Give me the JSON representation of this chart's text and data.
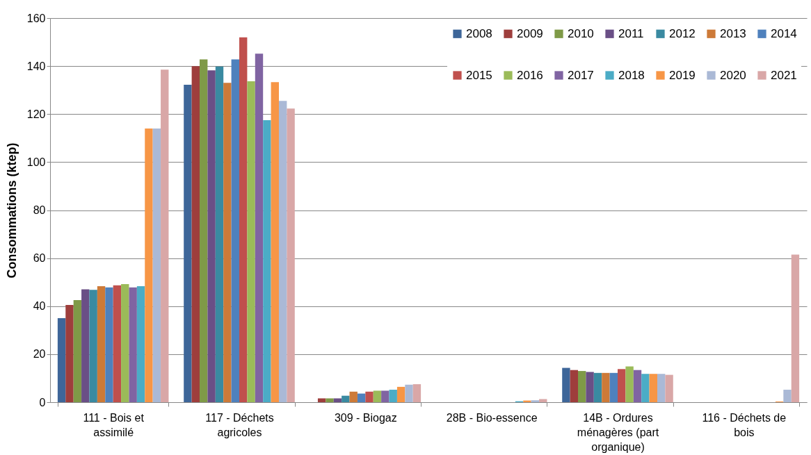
{
  "chart_data": {
    "type": "bar",
    "ylabel": "Consommations (ktep)",
    "categories": [
      "111 - Bois et assimilé",
      "117 - Déchets agricoles",
      "309 - Biogaz",
      "28B - Bio-essence",
      "14B - Ordures ménagères (part organique)",
      "116 - Déchets de bois"
    ],
    "series": [
      {
        "name": "2008",
        "color": "#3e6699",
        "values": [
          35,
          132.2,
          0,
          0,
          14.3,
          0
        ]
      },
      {
        "name": "2009",
        "color": "#9e3e3c",
        "values": [
          40.5,
          140,
          1.6,
          0,
          13.4,
          0
        ]
      },
      {
        "name": "2010",
        "color": "#7f9a47",
        "values": [
          42.5,
          142.8,
          1.6,
          0,
          13,
          0
        ]
      },
      {
        "name": "2011",
        "color": "#6a4f86",
        "values": [
          47,
          138.2,
          1.6,
          0,
          12.6,
          0
        ]
      },
      {
        "name": "2012",
        "color": "#3a8aa1",
        "values": [
          46.8,
          139.8,
          2.7,
          0,
          12.2,
          0
        ]
      },
      {
        "name": "2013",
        "color": "#cd7a38",
        "values": [
          48.3,
          133,
          4.4,
          0,
          12.2,
          0
        ]
      },
      {
        "name": "2014",
        "color": "#4f81bd",
        "values": [
          47.8,
          142.8,
          3.6,
          0,
          12.2,
          0
        ]
      },
      {
        "name": "2015",
        "color": "#c0504d",
        "values": [
          48.7,
          152,
          4.4,
          0,
          13.8,
          0
        ]
      },
      {
        "name": "2016",
        "color": "#9bbb59",
        "values": [
          49.2,
          133.7,
          4.8,
          0,
          14.9,
          0
        ]
      },
      {
        "name": "2017",
        "color": "#8064a2",
        "values": [
          47.8,
          145.2,
          4.8,
          0,
          13.4,
          0
        ]
      },
      {
        "name": "2018",
        "color": "#4bacc6",
        "values": [
          48.3,
          117.5,
          5.2,
          0.4,
          11.8,
          0
        ]
      },
      {
        "name": "2019",
        "color": "#f79646",
        "values": [
          114,
          133.3,
          6.4,
          0.7,
          11.8,
          0.3
        ]
      },
      {
        "name": "2020",
        "color": "#aab9d6",
        "values": [
          114,
          125.5,
          7.3,
          0.8,
          11.8,
          5.2
        ]
      },
      {
        "name": "2021",
        "color": "#d9a7a7",
        "values": [
          138.5,
          122.3,
          7.5,
          1.3,
          11.4,
          61.5
        ]
      }
    ],
    "ylim": [
      0,
      160
    ],
    "yticks": [
      0,
      20,
      40,
      60,
      80,
      100,
      120,
      140,
      160
    ],
    "grid": "y",
    "legend": "top right"
  }
}
